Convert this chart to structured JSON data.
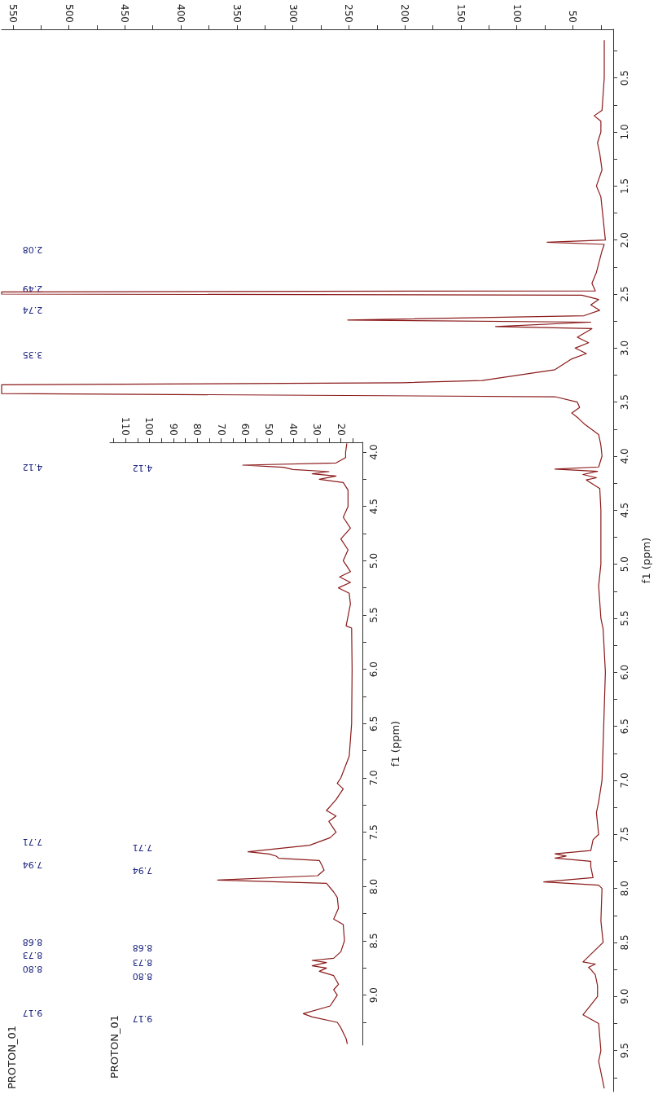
{
  "chart_data": [
    {
      "type": "line",
      "orientation": "horizontal",
      "ylabel": "f1 (ppm)",
      "color": "#8b1a1a",
      "marker": "none",
      "x": [
        0.15,
        0.5,
        0.8,
        0.85,
        0.9,
        1.0,
        1.1,
        1.2,
        1.35,
        1.5,
        1.6,
        1.8,
        2.0,
        2.02,
        2.04,
        2.1,
        2.3,
        2.4,
        2.47,
        2.48,
        2.5,
        2.51,
        2.55,
        2.6,
        2.65,
        2.7,
        2.74,
        2.76,
        2.8,
        2.82,
        2.85,
        2.9,
        2.95,
        3.0,
        3.05,
        3.1,
        3.2,
        3.3,
        3.32,
        3.34,
        3.42,
        3.45,
        3.5,
        3.55,
        3.6,
        3.65,
        3.7,
        3.8,
        3.9,
        4.0,
        4.1,
        4.12,
        4.14,
        4.17,
        4.2,
        4.22,
        4.3,
        4.5,
        5.0,
        5.2,
        5.5,
        5.6,
        6.0,
        7.0,
        7.2,
        7.3,
        7.5,
        7.55,
        7.65,
        7.68,
        7.7,
        7.72,
        7.75,
        7.8,
        7.9,
        7.94,
        7.97,
        8.0,
        8.3,
        8.5,
        8.68,
        8.7,
        8.73,
        8.75,
        8.8,
        8.9,
        9.0,
        9.17,
        9.25,
        9.5,
        9.6,
        9.85
      ],
      "values": [
        22,
        22,
        24,
        31,
        25,
        25,
        28,
        26,
        24,
        29,
        25,
        23,
        21,
        73,
        22,
        24,
        29,
        33,
        30,
        560,
        560,
        42,
        27,
        34,
        26,
        40,
        251,
        34,
        119,
        33,
        38,
        46,
        36,
        48,
        38,
        51,
        66,
        131,
        202,
        560,
        560,
        66,
        46,
        44,
        51,
        45,
        40,
        27,
        25,
        24,
        27,
        66,
        28,
        41,
        29,
        38,
        26,
        25,
        25,
        27,
        25,
        23,
        21,
        24,
        27,
        29,
        27,
        32,
        34,
        66,
        56,
        66,
        34,
        34,
        32,
        76,
        27,
        24,
        25,
        23,
        41,
        30,
        36,
        34,
        30,
        28,
        28,
        41,
        27,
        25,
        27,
        22
      ],
      "ylim": [
        9.88,
        0.05
      ],
      "yticks": [
        {
          "value": 0.25,
          "label": null
        },
        0.5,
        {
          "value": 0.75,
          "label": null
        },
        {
          "value": 1,
          "label": "1.0"
        },
        {
          "value": 1.25,
          "label": null
        },
        1.5,
        {
          "value": 1.75,
          "label": null
        },
        {
          "value": 2,
          "label": "2.0"
        },
        {
          "value": 2.25,
          "label": null
        },
        2.5,
        {
          "value": 2.75,
          "label": null
        },
        {
          "value": 3,
          "label": "3.0"
        },
        {
          "value": 3.25,
          "label": null
        },
        3.5,
        {
          "value": 3.75,
          "label": null
        },
        {
          "value": 4,
          "label": "4.0"
        },
        {
          "value": 4.25,
          "label": null
        },
        4.5,
        {
          "value": 4.75,
          "label": null
        },
        {
          "value": 5,
          "label": "5.0"
        },
        {
          "value": 5.25,
          "label": null
        },
        5.5,
        {
          "value": 5.75,
          "label": null
        },
        {
          "value": 6,
          "label": "6.0"
        },
        {
          "value": 6.25,
          "label": null
        },
        6.5,
        {
          "value": 6.75,
          "label": null
        },
        {
          "value": 7,
          "label": "7.0"
        },
        {
          "value": 7.25,
          "label": null
        },
        7.5,
        {
          "value": 7.75,
          "label": null
        },
        {
          "value": 8,
          "label": "8.0"
        },
        {
          "value": 8.25,
          "label": null
        },
        8.5,
        {
          "value": 8.75,
          "label": null
        },
        {
          "value": 9,
          "label": "9.0"
        },
        {
          "value": 9.25,
          "label": null
        },
        9.5,
        {
          "value": 9.75,
          "label": null
        }
      ],
      "xlim": [
        560,
        14
      ],
      "xticks": [
        {
          "value": 25,
          "label": null
        },
        50,
        {
          "value": 75,
          "label": null
        },
        100,
        {
          "value": 125,
          "label": null
        },
        150,
        {
          "value": 175,
          "label": null
        },
        200,
        {
          "value": 225,
          "label": null
        },
        250,
        {
          "value": 275,
          "label": null
        },
        300,
        {
          "value": 325,
          "label": null
        },
        350,
        {
          "value": 375,
          "label": null
        },
        400,
        {
          "value": 425,
          "label": null
        },
        450,
        {
          "value": 475,
          "label": null
        },
        500,
        {
          "value": 525,
          "label": null
        },
        550
      ],
      "annotations": [
        "2.08",
        "2.49",
        "2.74",
        "3.35",
        "4.12",
        "7.71",
        "7.94",
        "8.68",
        "8.73",
        "8.80",
        "9.17",
        "PROTON_01"
      ]
    },
    {
      "type": "line",
      "orientation": "horizontal",
      "ylabel": "f1 (ppm)",
      "color": "#8b1a1a",
      "marker": "none",
      "x": [
        3.92,
        4.0,
        4.05,
        4.1,
        4.12,
        4.14,
        4.16,
        4.18,
        4.2,
        4.22,
        4.25,
        4.28,
        4.35,
        4.5,
        4.6,
        4.7,
        4.8,
        4.9,
        5.0,
        5.1,
        5.15,
        5.2,
        5.25,
        5.3,
        5.4,
        5.6,
        5.62,
        6.0,
        6.5,
        6.8,
        7.0,
        7.05,
        7.1,
        7.2,
        7.25,
        7.3,
        7.35,
        7.4,
        7.5,
        7.55,
        7.62,
        7.68,
        7.7,
        7.72,
        7.74,
        7.76,
        7.8,
        7.85,
        7.9,
        7.94,
        7.97,
        8.05,
        8.1,
        8.2,
        8.3,
        8.35,
        8.5,
        8.6,
        8.66,
        8.68,
        8.7,
        8.73,
        8.75,
        8.78,
        8.82,
        8.9,
        8.95,
        9.0,
        9.1,
        9.17,
        9.2,
        9.25,
        9.3,
        9.4,
        9.45
      ],
      "values": [
        17.5,
        18,
        18,
        22,
        61,
        44,
        40,
        25,
        32,
        22,
        29,
        19,
        17,
        17,
        19,
        16,
        20,
        17,
        19,
        16,
        20.5,
        16,
        21,
        16.5,
        16,
        17.8,
        15.5,
        15.3,
        15.5,
        16.5,
        20,
        21.5,
        19,
        22,
        24,
        26,
        22,
        25,
        22,
        24.5,
        33,
        58.8,
        50,
        47,
        46,
        29,
        28,
        27,
        29.7,
        71.5,
        26,
        23,
        21.5,
        21,
        23,
        19,
        18.5,
        20,
        23,
        32,
        26,
        32,
        26,
        29,
        23,
        21,
        23,
        21.5,
        24.5,
        35.7,
        32,
        21.5,
        20,
        17.8,
        17.3
      ],
      "ylim": [
        9.46,
        3.91
      ],
      "yticks": [
        {
          "value": 4,
          "label": "4.0"
        },
        {
          "value": 4.25,
          "label": null
        },
        4.5,
        {
          "value": 4.75,
          "label": null
        },
        {
          "value": 5,
          "label": "5.0"
        },
        {
          "value": 5.25,
          "label": null
        },
        5.5,
        {
          "value": 5.75,
          "label": null
        },
        {
          "value": 6,
          "label": "6.0"
        },
        {
          "value": 6.25,
          "label": null
        },
        6.5,
        {
          "value": 6.75,
          "label": null
        },
        {
          "value": 7,
          "label": "7.0"
        },
        {
          "value": 7.25,
          "label": null
        },
        7.5,
        {
          "value": 7.75,
          "label": null
        },
        {
          "value": 8,
          "label": "8.0"
        },
        {
          "value": 8.25,
          "label": null
        },
        8.5,
        {
          "value": 8.75,
          "label": null
        },
        {
          "value": 9,
          "label": "9.0"
        },
        {
          "value": 9.25,
          "label": null
        }
      ],
      "xlim": [
        116.5,
        11
      ],
      "xticks": [
        {
          "value": 15,
          "label": null
        },
        20,
        {
          "value": 25,
          "label": null
        },
        30,
        {
          "value": 35,
          "label": null
        },
        40,
        {
          "value": 45,
          "label": null
        },
        50,
        {
          "value": 55,
          "label": null
        },
        60,
        {
          "value": 65,
          "label": null
        },
        70,
        {
          "value": 75,
          "label": null
        },
        80,
        {
          "value": 85,
          "label": null
        },
        90,
        {
          "value": 95,
          "label": null
        },
        100,
        {
          "value": 105,
          "label": null
        },
        110,
        {
          "value": 115,
          "label": null
        }
      ],
      "annotations": [
        "4.12",
        "7.71",
        "7.94",
        "8.68",
        "8.73",
        "8.80",
        "9.17",
        "PROTON_01"
      ]
    }
  ]
}
